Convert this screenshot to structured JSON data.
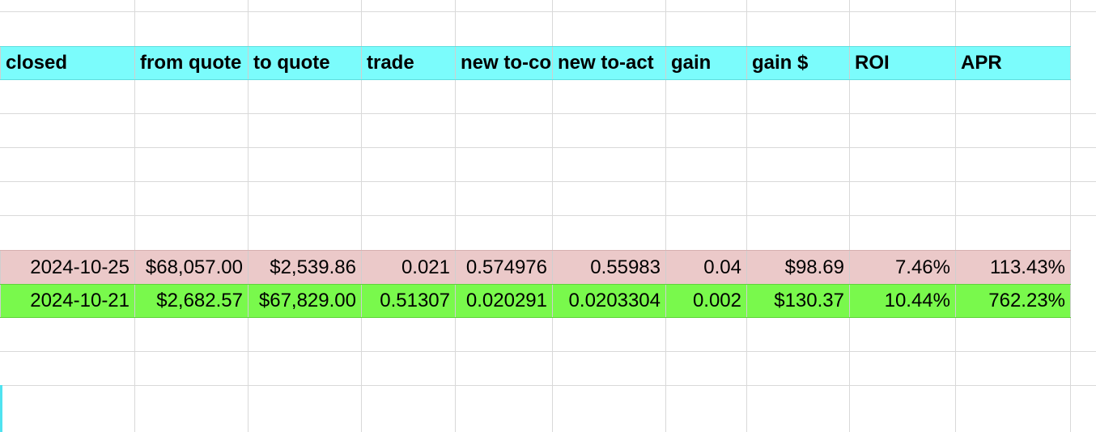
{
  "sheet": {
    "header_fill": "#7bfcfc",
    "row_fills": [
      "#ebc9c9",
      "#79f94c"
    ],
    "columns": [
      "closed",
      "from quote",
      "to quote",
      "trade",
      "new to-coin",
      "new to-act",
      "gain",
      "gain $",
      "ROI",
      "APR"
    ],
    "rows": [
      [
        "2024-10-25",
        "$68,057.00",
        "$2,539.86",
        "0.021",
        "0.574976",
        "0.55983",
        "0.04",
        "$98.69",
        "7.46%",
        "113.43%"
      ],
      [
        "2024-10-21",
        "$2,682.57",
        "$67,829.00",
        "0.51307",
        "0.020291",
        "0.0203304",
        "0.002",
        "$130.37",
        "10.44%",
        "762.23%"
      ]
    ]
  }
}
